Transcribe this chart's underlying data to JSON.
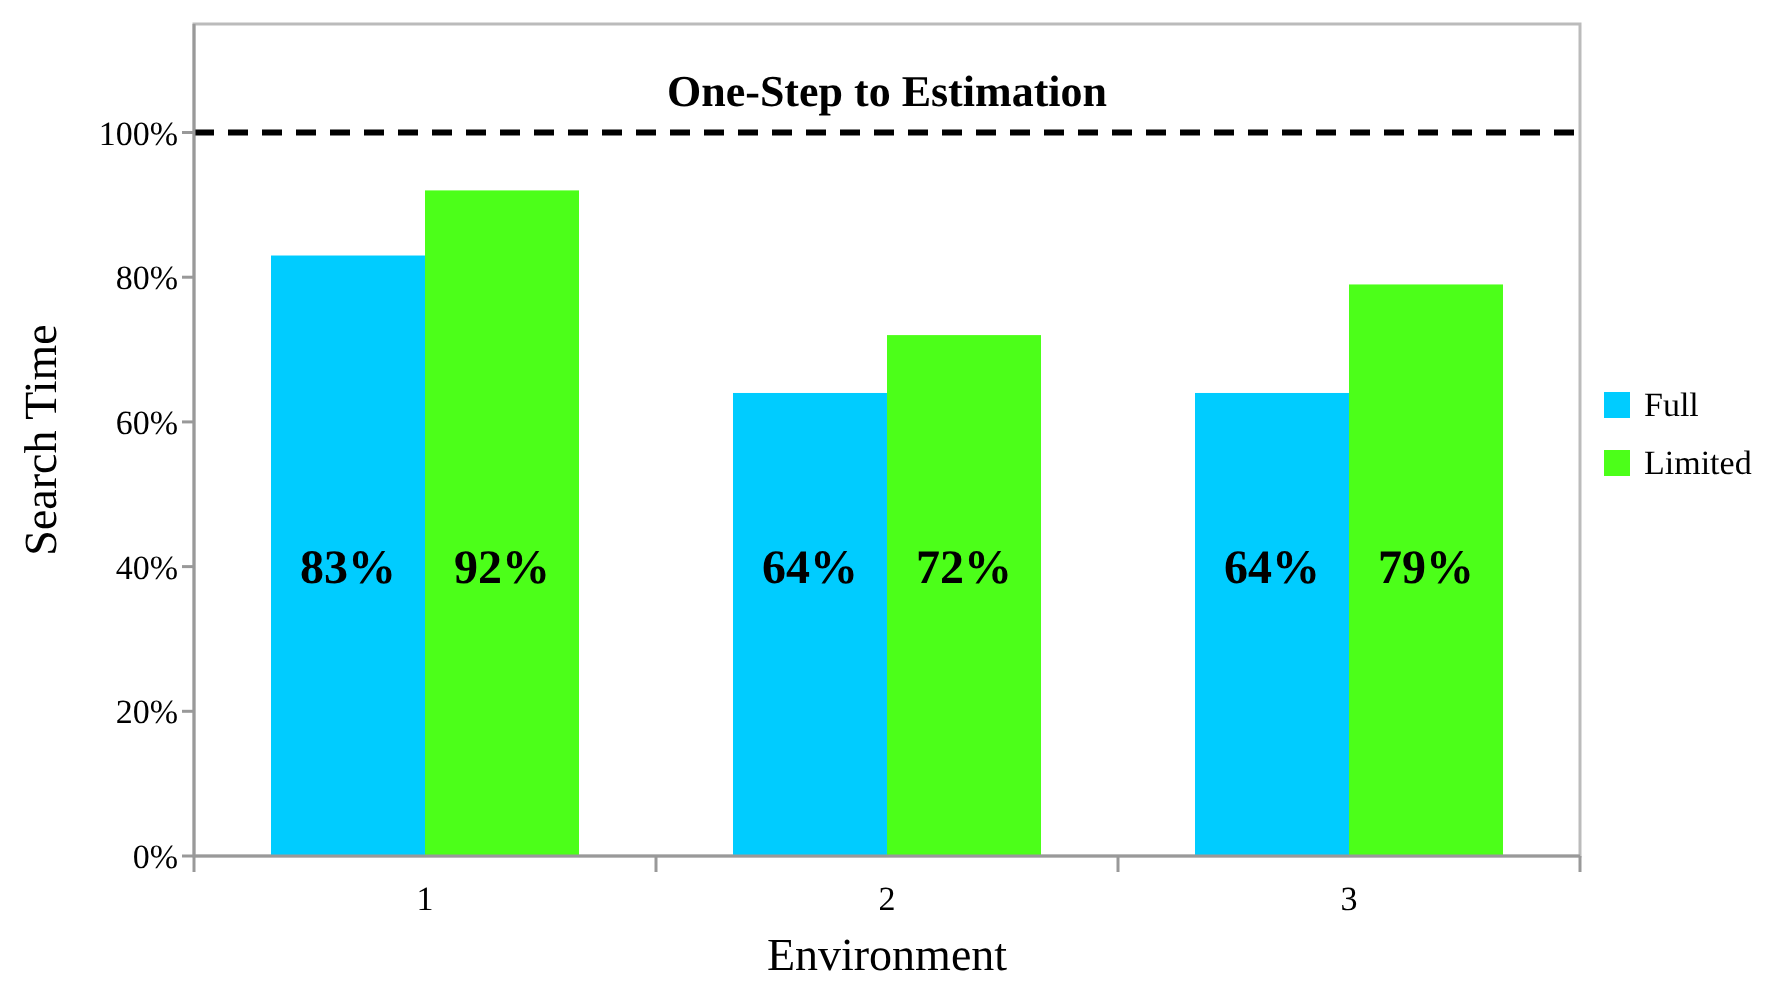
{
  "chart_data": {
    "type": "bar",
    "title": "One-Step to Estimation",
    "xlabel": "Environment",
    "ylabel": "Search Time",
    "categories": [
      "1",
      "2",
      "3"
    ],
    "series": [
      {
        "name": "Full",
        "color": "#00ccff",
        "values": [
          83,
          64,
          64
        ],
        "value_labels": [
          "83%",
          "64%",
          "64%"
        ]
      },
      {
        "name": "Limited",
        "color": "#4cff19",
        "values": [
          92,
          72,
          79
        ],
        "value_labels": [
          "92%",
          "72%",
          "79%"
        ]
      }
    ],
    "ylim": [
      0,
      115
    ],
    "yticks": [
      {
        "value": 0,
        "label": "0%"
      },
      {
        "value": 20,
        "label": "20%"
      },
      {
        "value": 40,
        "label": "40%"
      },
      {
        "value": 60,
        "label": "60%"
      },
      {
        "value": 80,
        "label": "80%"
      },
      {
        "value": 100,
        "label": "100%"
      }
    ],
    "ref_lines": [
      {
        "axis": "y",
        "value": 100,
        "label": null,
        "color": "#000000",
        "line_style": "dashed"
      }
    ],
    "grid": false,
    "legend": "right"
  }
}
